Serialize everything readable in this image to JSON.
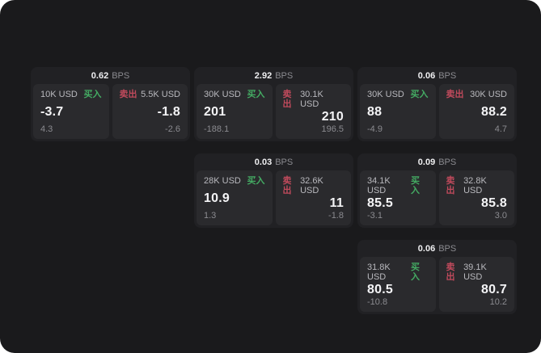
{
  "labels": {
    "bps_unit": "BPS",
    "buy": "买入",
    "sell": "卖出"
  },
  "colors": {
    "background": "#1a1a1c",
    "card": "#212124",
    "panel": "#2a2a2d",
    "buy_green": "#44ab63",
    "sell_red": "#c04a5c",
    "primary_text": "#f4f4f6",
    "muted_text": "#8b8b90"
  },
  "cards": [
    {
      "bps": "0.62",
      "buy": {
        "amount": "10K USD",
        "main": "-3.7",
        "sub": "4.3"
      },
      "sell": {
        "amount": "5.5K USD",
        "main": "-1.8",
        "sub": "-2.6"
      }
    },
    {
      "bps": "2.92",
      "buy": {
        "amount": "30K USD",
        "main": "201",
        "sub": "-188.1"
      },
      "sell": {
        "amount": "30.1K USD",
        "main": "210",
        "sub": "196.5"
      }
    },
    {
      "bps": "0.06",
      "buy": {
        "amount": "30K USD",
        "main": "88",
        "sub": "-4.9"
      },
      "sell": {
        "amount": "30K USD",
        "main": "88.2",
        "sub": "4.7"
      }
    },
    {
      "bps": "0.03",
      "buy": {
        "amount": "28K USD",
        "main": "10.9",
        "sub": "1.3"
      },
      "sell": {
        "amount": "32.6K USD",
        "main": "11",
        "sub": "-1.8"
      }
    },
    {
      "bps": "0.09",
      "buy": {
        "amount": "34.1K USD",
        "main": "85.5",
        "sub": "-3.1"
      },
      "sell": {
        "amount": "32.8K USD",
        "main": "85.8",
        "sub": "3.0"
      }
    },
    {
      "bps": "0.06",
      "buy": {
        "amount": "31.8K USD",
        "main": "80.5",
        "sub": "-10.8"
      },
      "sell": {
        "amount": "39.1K USD",
        "main": "80.7",
        "sub": "10.2"
      }
    }
  ]
}
